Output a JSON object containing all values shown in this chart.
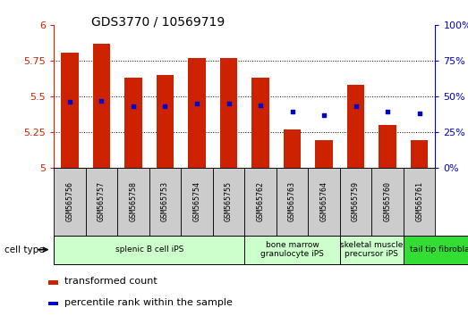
{
  "title": "GDS3770 / 10569719",
  "samples": [
    "GSM565756",
    "GSM565757",
    "GSM565758",
    "GSM565753",
    "GSM565754",
    "GSM565755",
    "GSM565762",
    "GSM565763",
    "GSM565764",
    "GSM565759",
    "GSM565760",
    "GSM565761"
  ],
  "red_values": [
    5.81,
    5.87,
    5.63,
    5.65,
    5.77,
    5.77,
    5.63,
    5.27,
    5.19,
    5.58,
    5.3,
    5.19
  ],
  "blue_values": [
    46,
    47,
    43,
    43,
    45,
    45,
    44,
    39,
    37,
    43,
    39,
    38
  ],
  "ymin": 5.0,
  "ymax": 6.0,
  "y2min": 0,
  "y2max": 100,
  "yticks": [
    5.0,
    5.25,
    5.5,
    5.75,
    6.0
  ],
  "ytick_labels": [
    "5",
    "5.25",
    "5.5",
    "5.75",
    "6"
  ],
  "y2ticks": [
    0,
    25,
    50,
    75,
    100
  ],
  "y2tick_labels": [
    "0%",
    "25%",
    "50%",
    "75%",
    "100%"
  ],
  "cell_types": [
    {
      "label": "splenic B cell iPS",
      "start": 0,
      "end": 6,
      "color": "#ccffcc"
    },
    {
      "label": "bone marrow\ngranulocyte iPS",
      "start": 6,
      "end": 9,
      "color": "#ccffcc"
    },
    {
      "label": "skeletal muscle\nprecursor iPS",
      "start": 9,
      "end": 11,
      "color": "#ccffcc"
    },
    {
      "label": "tail tip fibroblast iPS",
      "start": 11,
      "end": 14,
      "color": "#33dd33"
    }
  ],
  "bar_color": "#cc2200",
  "dot_color": "#0000cc",
  "bar_width": 0.55,
  "tick_color_left": "#cc2200",
  "tick_color_right": "#0000cc",
  "legend_red_label": "transformed count",
  "legend_blue_label": "percentile rank within the sample",
  "cell_type_label": "cell type",
  "gray_box_color": "#cccccc",
  "title_fontsize": 10,
  "axis_fontsize": 8,
  "label_fontsize": 7,
  "legend_fontsize": 8
}
